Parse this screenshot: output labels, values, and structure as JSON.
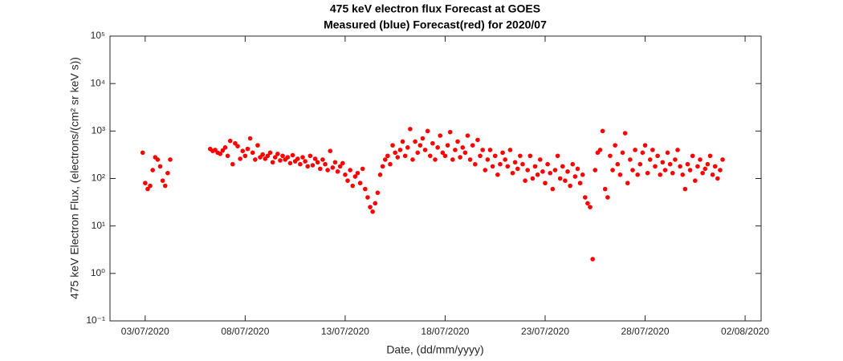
{
  "chart_data": {
    "type": "scatter",
    "title": "475 keV electron flux Forecast at GOES",
    "subtitle": "Measured (blue) Forecast(red) for 2020/07",
    "x_label": "Date, (dd/mm/yyyy)",
    "y_label": "475 keV Electron Flux, (electrons/(cm² sr keV s))",
    "log_y": true,
    "xlim": [
      1.24,
      33.8
    ],
    "xticks": [
      {
        "value": 3,
        "label": "03/07/2020"
      },
      {
        "value": 8,
        "label": "08/07/2020"
      },
      {
        "value": 13,
        "label": "13/07/2020"
      },
      {
        "value": 18,
        "label": "18/07/2020"
      },
      {
        "value": 23,
        "label": "23/07/2020"
      },
      {
        "value": 28,
        "label": "28/07/2020"
      },
      {
        "value": 33,
        "label": "02/08/2020"
      }
    ],
    "ylim": [
      0.1,
      100000
    ],
    "yticks": [
      {
        "value": 0.1,
        "label": "10⁻¹"
      },
      {
        "value": 1,
        "label": "10⁰"
      },
      {
        "value": 10,
        "label": "10¹"
      },
      {
        "value": 100,
        "label": "10²"
      },
      {
        "value": 1000,
        "label": "10³"
      },
      {
        "value": 10000,
        "label": "10⁴"
      },
      {
        "value": 100000,
        "label": "10⁵"
      }
    ],
    "series": [
      {
        "color": "#ff0000",
        "x": [
          2.875,
          3,
          3.125,
          3.25,
          3.375,
          3.5,
          3.625,
          3.75,
          3.875,
          4,
          4.125,
          4.25,
          6.25,
          6.375,
          6.5,
          6.625,
          6.75,
          6.875,
          7,
          7.125,
          7.25,
          7.375,
          7.5,
          7.625,
          7.75,
          7.875,
          8,
          8.125,
          8.25,
          8.375,
          8.5,
          8.625,
          8.75,
          8.875,
          9,
          9.125,
          9.25,
          9.375,
          9.5,
          9.625,
          9.75,
          9.875,
          10,
          10.125,
          10.25,
          10.375,
          10.5,
          10.625,
          10.75,
          10.875,
          11,
          11.125,
          11.25,
          11.375,
          11.5,
          11.625,
          11.75,
          11.875,
          12,
          12.125,
          12.25,
          12.375,
          12.5,
          12.625,
          12.75,
          12.875,
          13,
          13.125,
          13.25,
          13.375,
          13.5,
          13.625,
          13.75,
          13.875,
          14,
          14.125,
          14.25,
          14.375,
          14.5,
          14.625,
          14.75,
          14.875,
          15,
          15.125,
          15.25,
          15.375,
          15.5,
          15.625,
          15.75,
          15.875,
          16,
          16.125,
          16.25,
          16.375,
          16.5,
          16.625,
          16.75,
          16.875,
          17,
          17.125,
          17.25,
          17.375,
          17.5,
          17.625,
          17.75,
          17.875,
          18,
          18.125,
          18.25,
          18.375,
          18.5,
          18.625,
          18.75,
          18.875,
          19,
          19.125,
          19.25,
          19.375,
          19.5,
          19.625,
          19.75,
          19.875,
          20,
          20.125,
          20.25,
          20.375,
          20.5,
          20.625,
          20.75,
          20.875,
          21,
          21.125,
          21.25,
          21.375,
          21.5,
          21.625,
          21.75,
          21.875,
          22,
          22.125,
          22.25,
          22.375,
          22.5,
          22.625,
          22.75,
          22.875,
          23,
          23.125,
          23.25,
          23.375,
          23.5,
          23.625,
          23.75,
          23.875,
          24,
          24.125,
          24.25,
          24.375,
          24.5,
          24.625,
          24.75,
          24.875,
          25,
          25.125,
          25.25,
          25.375,
          25.5,
          25.625,
          25.75,
          25.875,
          26,
          26.125,
          26.25,
          26.375,
          26.5,
          26.625,
          26.75,
          26.875,
          27,
          27.125,
          27.25,
          27.375,
          27.5,
          27.625,
          27.75,
          27.875,
          28,
          28.125,
          28.25,
          28.375,
          28.5,
          28.625,
          28.75,
          28.875,
          29,
          29.125,
          29.25,
          29.375,
          29.5,
          29.625,
          29.75,
          29.875,
          30,
          30.125,
          30.25,
          30.375,
          30.5,
          30.625,
          30.75,
          30.875,
          31,
          31.125,
          31.25,
          31.375,
          31.5,
          31.625,
          31.75,
          31.875
        ],
        "values": [
          350,
          80,
          60,
          70,
          150,
          280,
          250,
          180,
          90,
          70,
          130,
          250,
          420,
          380,
          400,
          350,
          330,
          390,
          450,
          300,
          620,
          200,
          550,
          480,
          260,
          380,
          300,
          420,
          700,
          350,
          250,
          500,
          280,
          320,
          260,
          300,
          350,
          220,
          280,
          330,
          240,
          300,
          250,
          280,
          210,
          310,
          230,
          260,
          200,
          280,
          230,
          180,
          300,
          190,
          260,
          220,
          160,
          250,
          200,
          150,
          380,
          170,
          220,
          140,
          180,
          210,
          120,
          90,
          150,
          70,
          110,
          130,
          80,
          160,
          60,
          40,
          25,
          20,
          30,
          50,
          120,
          180,
          250,
          300,
          200,
          500,
          350,
          280,
          400,
          600,
          300,
          450,
          1100,
          250,
          600,
          350,
          500,
          700,
          400,
          1000,
          300,
          550,
          250,
          450,
          800,
          350,
          300,
          500,
          950,
          250,
          400,
          600,
          280,
          450,
          350,
          800,
          250,
          500,
          200,
          650,
          300,
          400,
          150,
          250,
          400,
          180,
          300,
          120,
          200,
          350,
          250,
          180,
          400,
          130,
          220,
          160,
          300,
          200,
          90,
          150,
          300,
          100,
          180,
          120,
          250,
          140,
          80,
          200,
          130,
          60,
          150,
          300,
          100,
          180,
          90,
          140,
          70,
          200,
          110,
          160,
          80,
          120,
          40,
          30,
          25,
          2,
          150,
          350,
          400,
          1000,
          60,
          40,
          300,
          150,
          500,
          200,
          120,
          350,
          900,
          80,
          250,
          150,
          400,
          120,
          200,
          350,
          500,
          130,
          250,
          400,
          180,
          300,
          120,
          220,
          150,
          350,
          200,
          130,
          250,
          400,
          180,
          120,
          60,
          200,
          150,
          300,
          90,
          180,
          250,
          130,
          160,
          200,
          300,
          120,
          180,
          100,
          150,
          250
        ]
      }
    ]
  }
}
